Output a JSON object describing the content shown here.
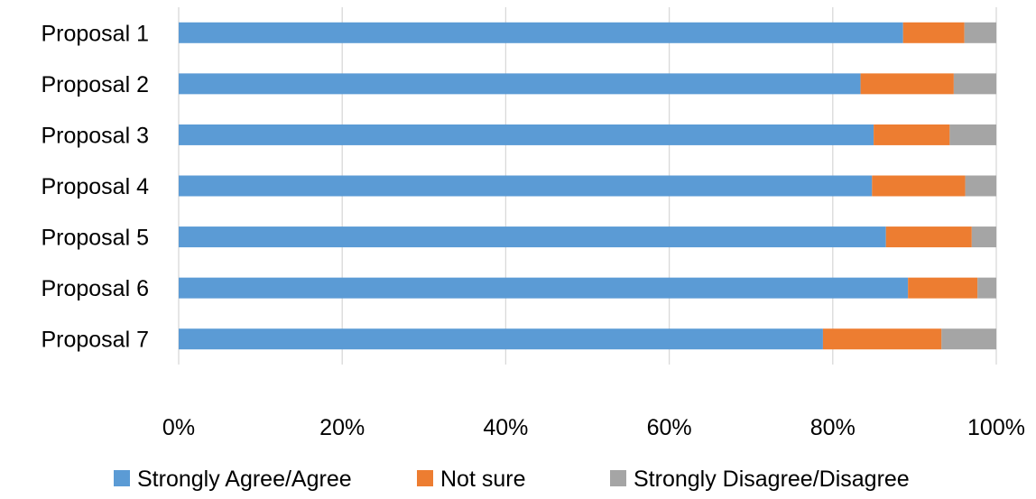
{
  "chart_data": {
    "type": "bar",
    "orientation": "horizontal",
    "stacked": true,
    "normalized_percent": true,
    "categories": [
      "Proposal 1",
      "Proposal 2",
      "Proposal 3",
      "Proposal 4",
      "Proposal 5",
      "Proposal 6",
      "Proposal 7"
    ],
    "series": [
      {
        "name": "Strongly Agree/Agree",
        "color": "#5B9BD5",
        "values": [
          88.6,
          83.4,
          85.0,
          84.8,
          86.5,
          89.2,
          78.8
        ]
      },
      {
        "name": "Not sure",
        "color": "#ED7D31",
        "values": [
          7.5,
          11.4,
          9.3,
          11.4,
          10.5,
          8.5,
          14.5
        ]
      },
      {
        "name": "Strongly Disagree/Disagree",
        "color": "#A5A5A5",
        "values": [
          3.9,
          5.2,
          5.7,
          3.8,
          3.0,
          2.3,
          6.7
        ]
      }
    ],
    "xaxis": {
      "min": 0,
      "max": 100,
      "ticks": [
        0,
        20,
        40,
        60,
        80,
        100
      ],
      "tick_labels": [
        "0%",
        "20%",
        "40%",
        "60%",
        "80%",
        "100%"
      ]
    },
    "grid": true,
    "grid_color": "#D9D9D9",
    "legend_position": "bottom",
    "title": "",
    "xlabel": "",
    "ylabel": ""
  }
}
